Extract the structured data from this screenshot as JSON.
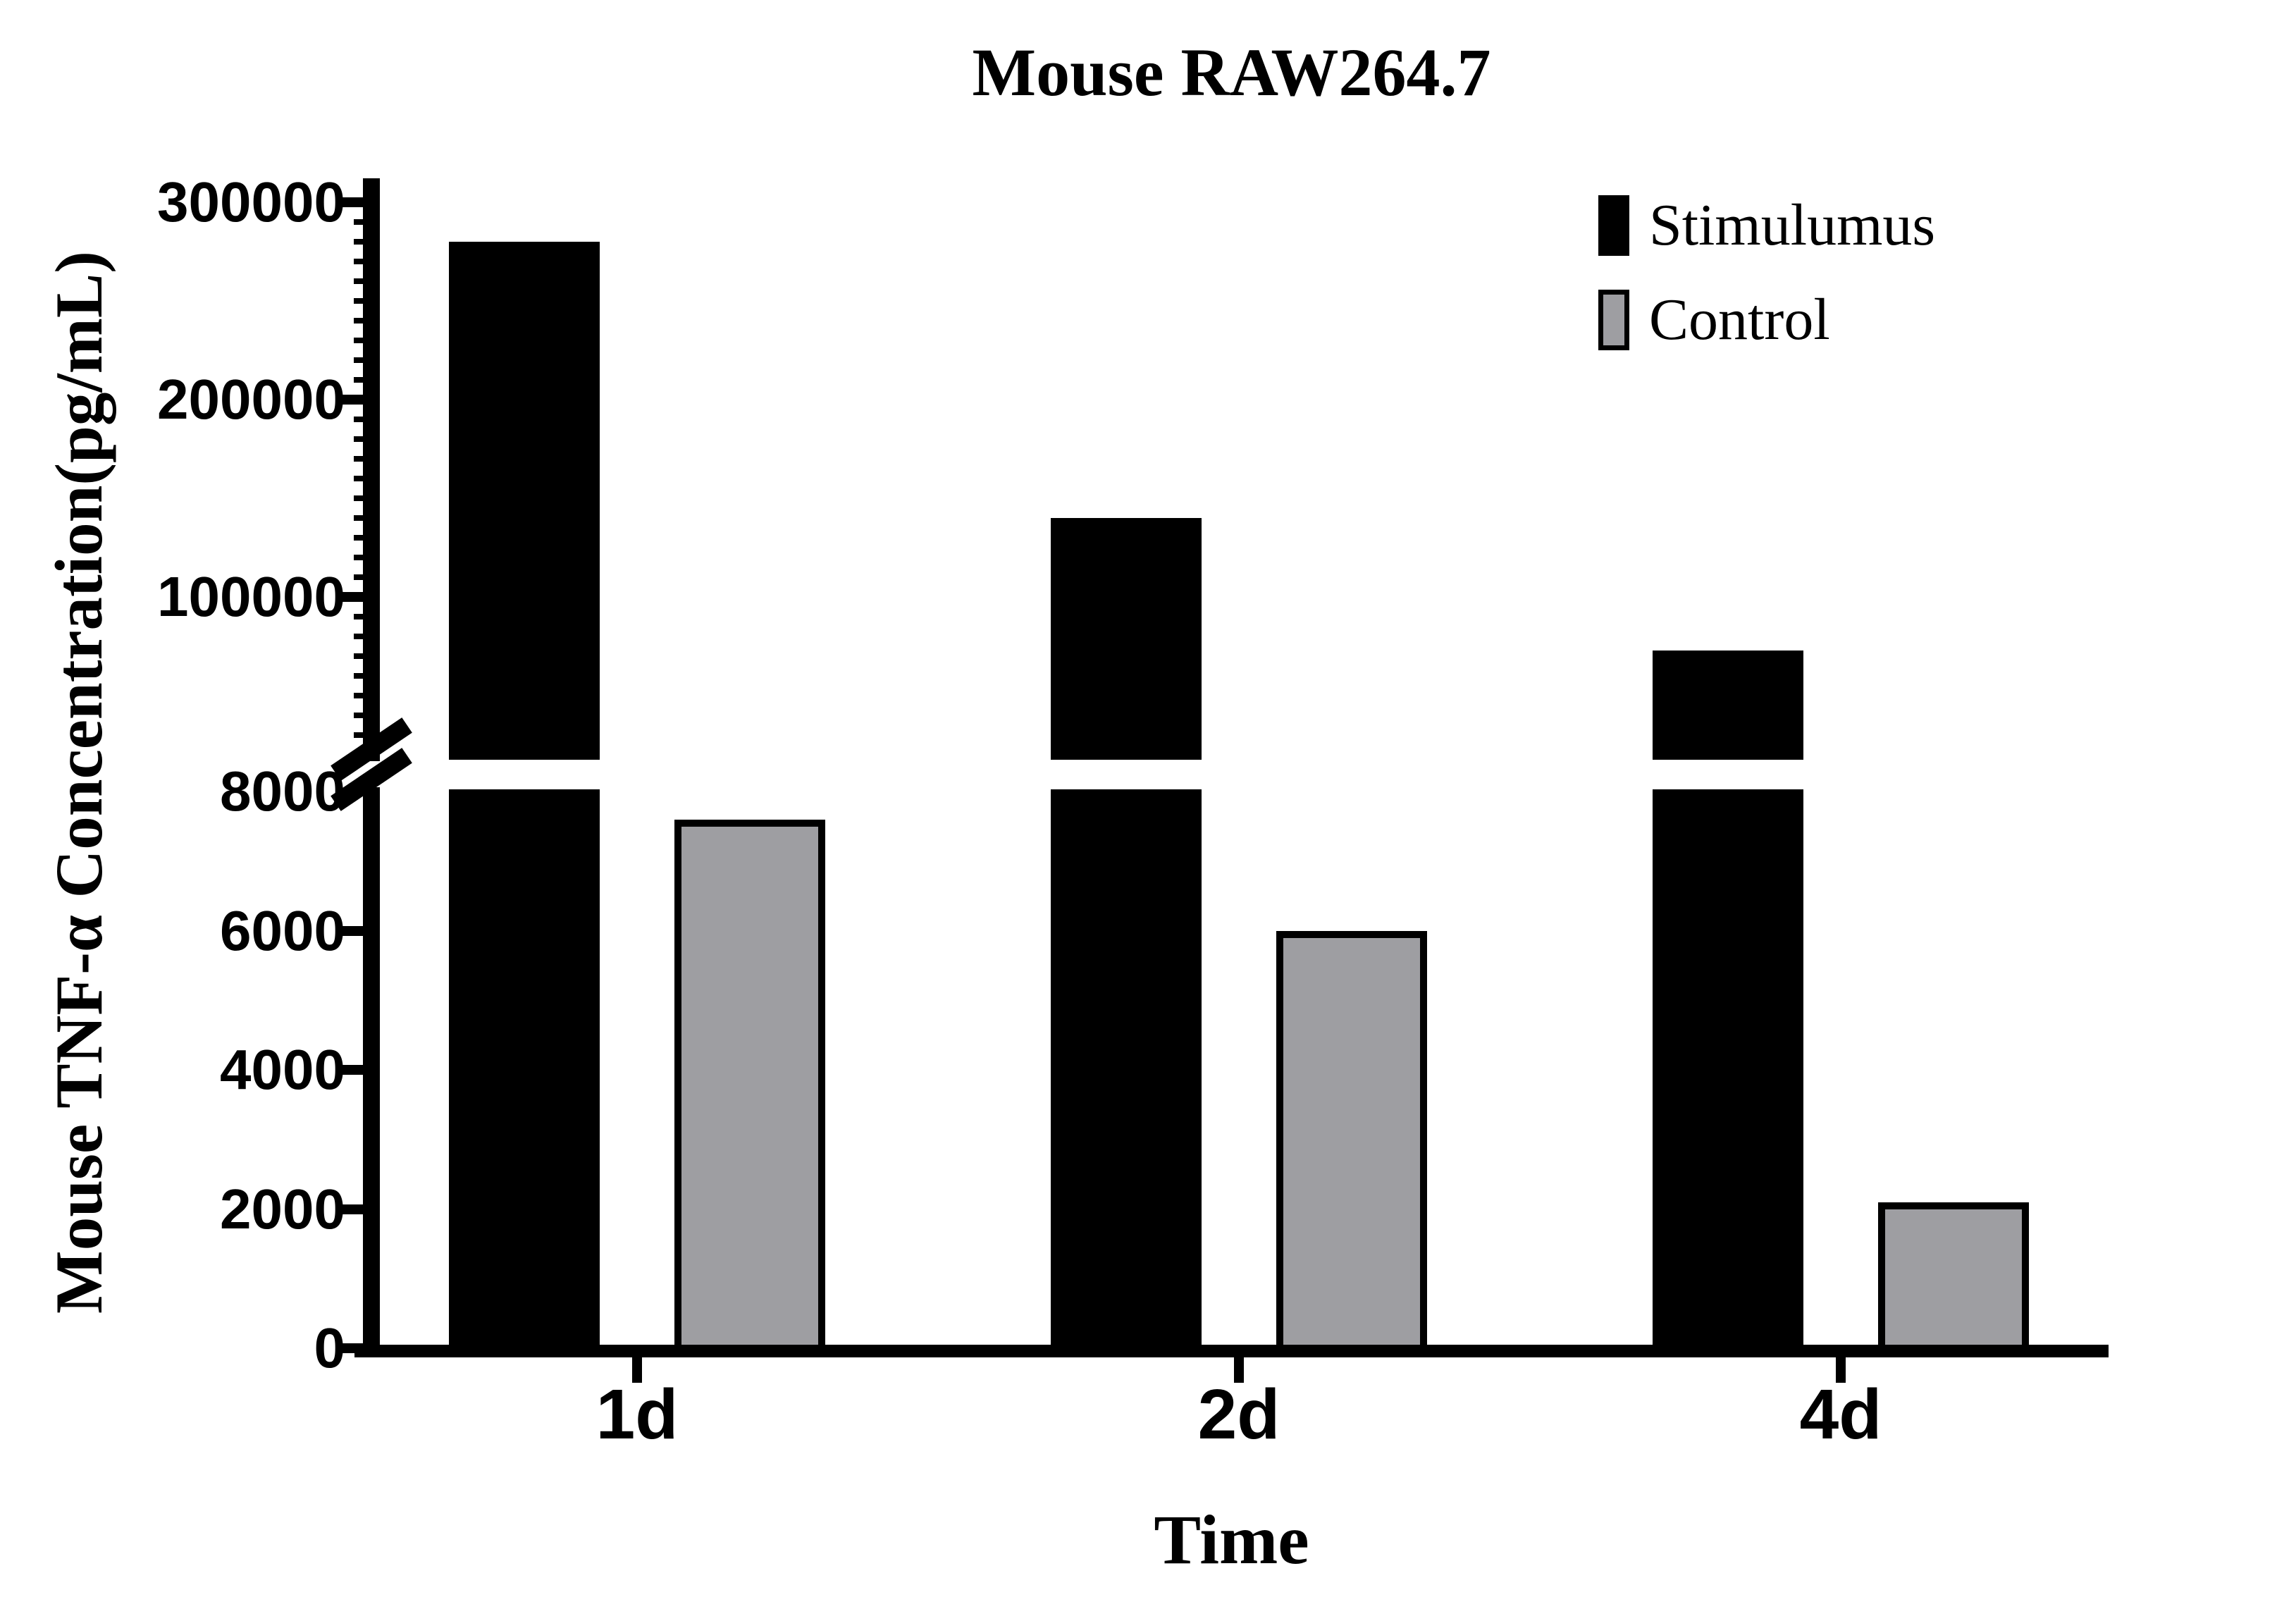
{
  "title": "Mouse RAW264.7",
  "legend": {
    "items": [
      {
        "label": "Stimulumus",
        "color": "#000000"
      },
      {
        "label": "Control",
        "color": "#9E9EA2"
      }
    ]
  },
  "y_axis": {
    "title": "Mouse TNF-α Concentration(pg/mL)",
    "upper_tick_labels": [
      "300000",
      "200000",
      "100000"
    ],
    "break_tick_label": "8000",
    "lower_tick_labels": [
      "6000",
      "4000",
      "2000",
      "0"
    ]
  },
  "x_axis": {
    "title": "Time",
    "tick_labels": [
      "1d",
      "2d",
      "4d"
    ]
  },
  "chart_data": {
    "type": "bar",
    "categories": [
      "1d",
      "2d",
      "4d"
    ],
    "series": [
      {
        "name": "Stimulumus",
        "color": "#000000",
        "values": [
          280000,
          140000,
          73000
        ]
      },
      {
        "name": "Control",
        "color": "#9E9EA2",
        "values": [
          7600,
          6000,
          2100
        ]
      }
    ],
    "title": "Mouse RAW264.7",
    "xlabel": "Time",
    "ylabel": "Mouse TNF-α Concentration(pg/mL)",
    "y_axis_break": {
      "lower_range": [
        0,
        8000
      ],
      "lower_tick_step": 2000,
      "upper_range": [
        8000,
        300000
      ],
      "upper_major_ticks": [
        100000,
        200000,
        300000
      ],
      "upper_minor_tick_step": 10000
    },
    "legend_position": "top-right",
    "grid": false,
    "bar_style": {
      "stimulumus_fill": "#000000",
      "control_fill": "#9E9EA2",
      "control_border": "#000000"
    }
  }
}
